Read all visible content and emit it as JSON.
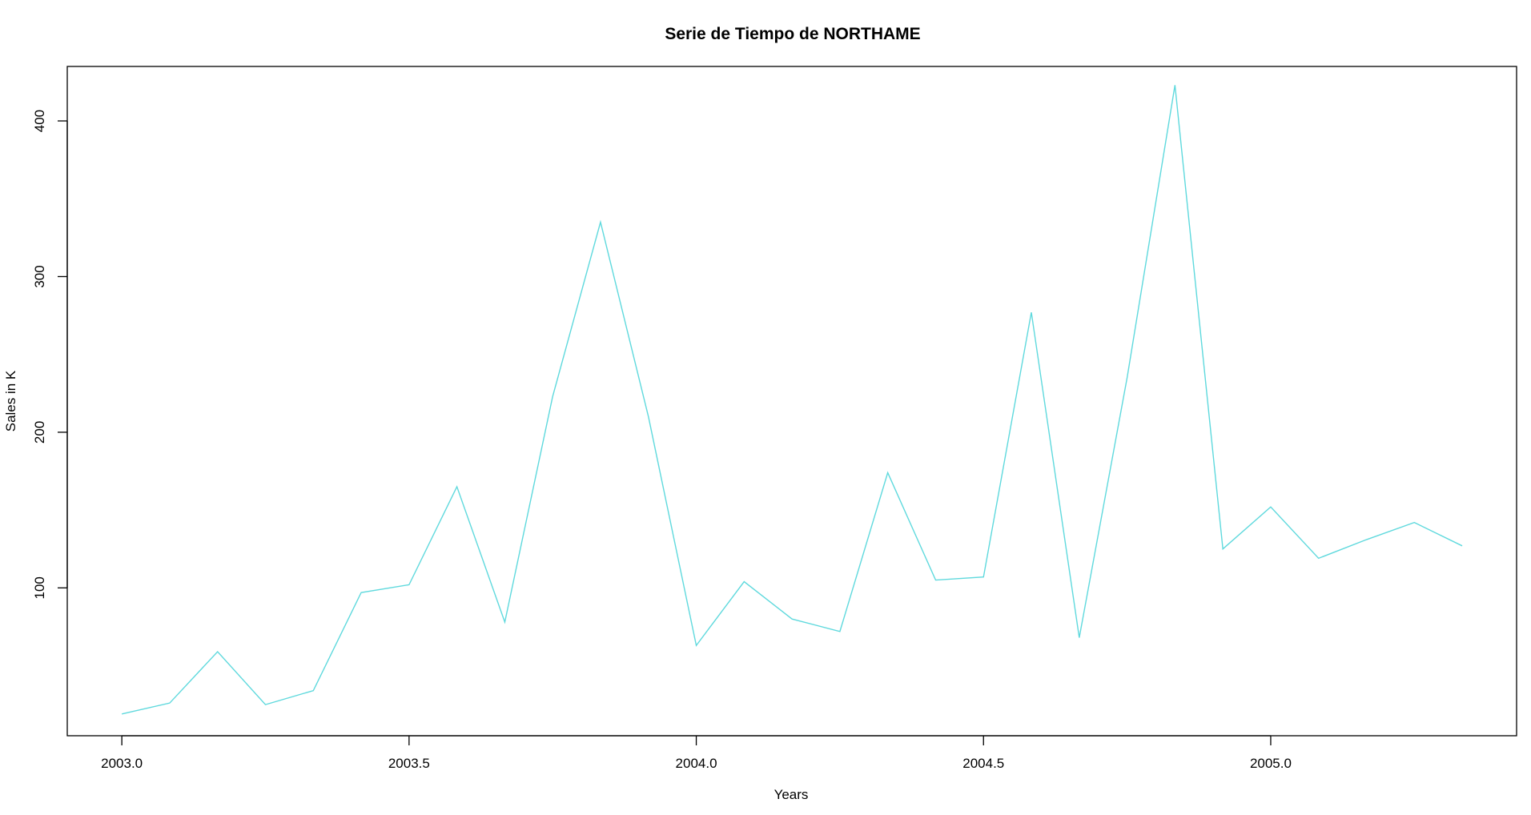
{
  "chart_data": {
    "type": "line",
    "title": "Serie de Tiempo de NORTHAME",
    "xlabel": "Years",
    "ylabel": "Sales in K",
    "xlim": [
      2002.905,
      2005.428
    ],
    "ylim": [
      5,
      435
    ],
    "x_ticks": [
      "2003.0",
      "2003.5",
      "2004.0",
      "2004.5",
      "2005.0"
    ],
    "y_ticks": [
      "100",
      "200",
      "300",
      "400"
    ],
    "grid": false,
    "legend": "none",
    "line_color": "#5fd9dd",
    "series": [
      {
        "x": [
          2003.0,
          2003.0833,
          2003.1667,
          2003.25,
          2003.3333,
          2003.4167,
          2003.5,
          2003.5833,
          2003.6667,
          2003.75,
          2003.8333,
          2003.9167,
          2004.0,
          2004.0833,
          2004.1667,
          2004.25,
          2004.3333,
          2004.4167,
          2004.5,
          2004.5833,
          2004.6667,
          2004.75,
          2004.8333,
          2004.9167,
          2005.0,
          2005.0833,
          2005.1667,
          2005.25,
          2005.3333
        ],
        "values": [
          19,
          26,
          59,
          25,
          34,
          97,
          102,
          165,
          78,
          223,
          335,
          210,
          63,
          104,
          80,
          72,
          174,
          105,
          107,
          277,
          68,
          235,
          423,
          125,
          152,
          119,
          131,
          142,
          127
        ]
      }
    ]
  }
}
